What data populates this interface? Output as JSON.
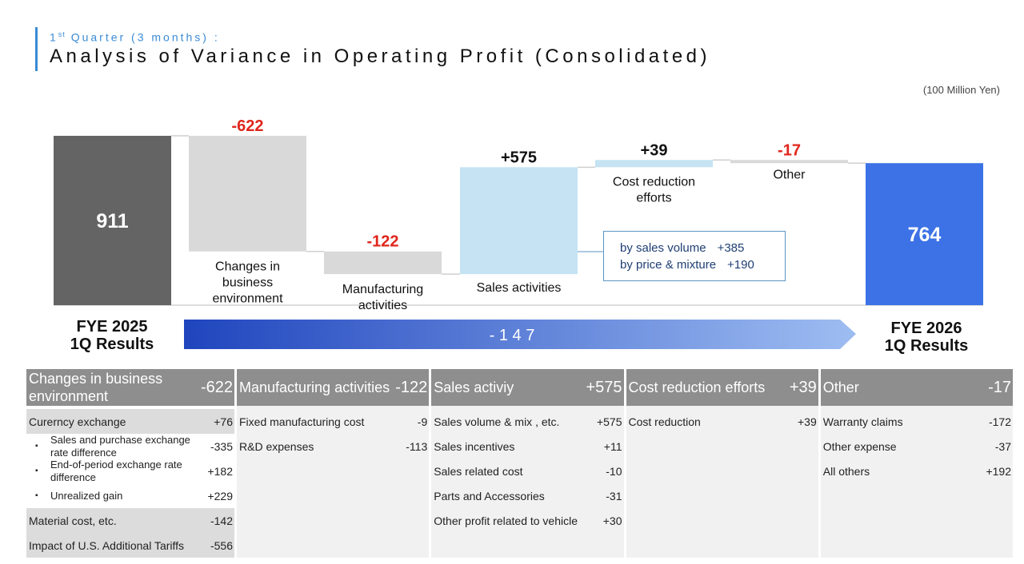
{
  "header": {
    "subtitle_pre": "1",
    "subtitle_sup": "st",
    "subtitle_post": " Quarter (3 months) :",
    "title": "Analysis of Variance in Operating Profit (Consolidated)",
    "unit": "(100 Million Yen)"
  },
  "chart_data": {
    "type": "bar",
    "subtype": "waterfall",
    "categories": [
      "FYE 2025 1Q Results",
      "Changes in business environment",
      "Manufacturing activities",
      "Sales activities",
      "Cost reduction efforts",
      "Other",
      "FYE 2026 1Q Results"
    ],
    "start": {
      "value": 911,
      "label": "911",
      "caption_line1": "FYE 2025",
      "caption_line2": "1Q Results"
    },
    "end": {
      "value": 764,
      "label": "764",
      "caption_line1": "FYE 2026",
      "caption_line2": "1Q Results"
    },
    "steps": [
      {
        "name": "Changes in business environment",
        "caption": [
          "Changes in",
          "business",
          "environment"
        ],
        "value": -622,
        "label": "-622"
      },
      {
        "name": "Manufacturing activities",
        "caption": [
          "Manufacturing",
          "activities"
        ],
        "value": -122,
        "label": "-122"
      },
      {
        "name": "Sales activities",
        "caption": [
          "Sales activities"
        ],
        "value": 575,
        "label": "+575"
      },
      {
        "name": "Cost reduction efforts",
        "caption": [
          "Cost reduction",
          "efforts"
        ],
        "value": 39,
        "label": "+39"
      },
      {
        "name": "Other",
        "caption": [
          "Other"
        ],
        "value": -17,
        "label": "-17"
      }
    ],
    "net_change": {
      "value": -147,
      "label": "- 1 4 7"
    },
    "colors": {
      "start_bar": "#646464",
      "end_bar": "#3c72e6",
      "decrease_bar": "#d9d9d9",
      "increase_bar": "#c5e3f3",
      "negative_label": "#e0251b",
      "positive_label": "#111111",
      "arrow_start": "#1f45be",
      "arrow_end": "#9ebdf2"
    },
    "ylim": [
      0,
      911
    ]
  },
  "sales_breakdown": {
    "rows": [
      {
        "label": "by sales volume",
        "value": "+385"
      },
      {
        "label": "by price & mixture",
        "value": "+190"
      }
    ]
  },
  "table": {
    "columns": [
      {
        "title": "Changes in business environment",
        "value": "-622",
        "rows": [
          {
            "label": "Curerncy exchange",
            "value": "+76",
            "style": "plain"
          },
          {
            "label": "Sales and purchase exchange rate difference",
            "value": "-335",
            "style": "sub"
          },
          {
            "label": "End-of-period exchange rate difference",
            "value": "+182",
            "style": "sub"
          },
          {
            "label": "Unrealized gain",
            "value": "+229",
            "style": "sub"
          },
          {
            "label": "Material cost, etc.",
            "value": "-142",
            "style": "plain"
          },
          {
            "label": "Impact of U.S. Additional Tariffs",
            "value": "-556",
            "style": "plain"
          }
        ]
      },
      {
        "title": "Manufacturing activities",
        "value": "-122",
        "rows": [
          {
            "label": "Fixed manufacturing cost",
            "value": "-9"
          },
          {
            "label": "R&D expenses",
            "value": "-113"
          }
        ]
      },
      {
        "title": "Sales activiy",
        "value": "+575",
        "rows": [
          {
            "label": "Sales volume & mix , etc.",
            "value": "+575"
          },
          {
            "label": "Sales incentives",
            "value": "+11"
          },
          {
            "label": "Sales related cost",
            "value": "-10"
          },
          {
            "label": "Parts and Accessories",
            "value": "-31"
          },
          {
            "label": "Other profit related to vehicle",
            "value": "+30"
          }
        ]
      },
      {
        "title": "Cost reduction efforts",
        "value": "+39",
        "rows": [
          {
            "label": "Cost reduction",
            "value": "+39"
          }
        ]
      },
      {
        "title": "Other",
        "value": "-17",
        "rows": [
          {
            "label": "Warranty claims",
            "value": "-172"
          },
          {
            "label": "Other expense",
            "value": "-37"
          },
          {
            "label": "All others",
            "value": "+192"
          }
        ]
      }
    ]
  }
}
